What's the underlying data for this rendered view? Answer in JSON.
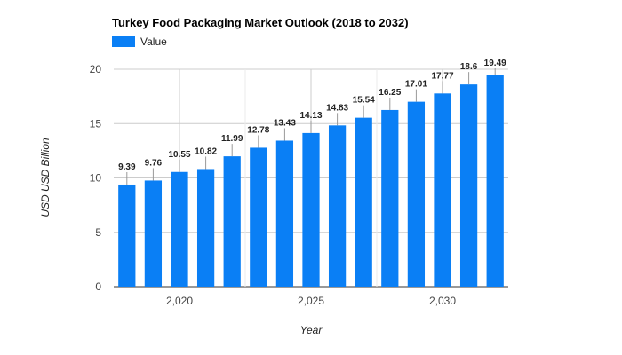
{
  "chart_data": {
    "type": "bar",
    "title": "Turkey Food Packaging Market Outlook (2018 to 2032)",
    "legend": {
      "placement": "top-left",
      "entries": [
        "Value"
      ]
    },
    "xlabel": "Year",
    "ylabel": "USD USD Billion",
    "x": [
      2018,
      2019,
      2020,
      2021,
      2022,
      2023,
      2024,
      2025,
      2026,
      2027,
      2028,
      2029,
      2030,
      2031,
      2032
    ],
    "x_ticks": [
      2020,
      2025,
      2030
    ],
    "x_tick_labels": [
      "2,020",
      "2,025",
      "2,030"
    ],
    "ylim": [
      0,
      20
    ],
    "y_ticks": [
      0,
      5,
      10,
      15,
      20
    ],
    "y_tick_labels": [
      "0",
      "5",
      "10",
      "15",
      "20"
    ],
    "grid": true,
    "series": [
      {
        "name": "Value",
        "color": "#0a7ff5",
        "values": [
          9.39,
          9.76,
          10.55,
          10.82,
          11.99,
          12.78,
          13.43,
          14.13,
          14.83,
          15.54,
          16.25,
          17.01,
          17.77,
          18.6,
          19.49
        ],
        "labels": [
          "9.39",
          "9.76",
          "10.55",
          "10.82",
          "11.99",
          "12.78",
          "13.43",
          "14.13",
          "14.83",
          "15.54",
          "16.25",
          "17.01",
          "17.77",
          "18.6",
          "19.49"
        ]
      }
    ]
  }
}
